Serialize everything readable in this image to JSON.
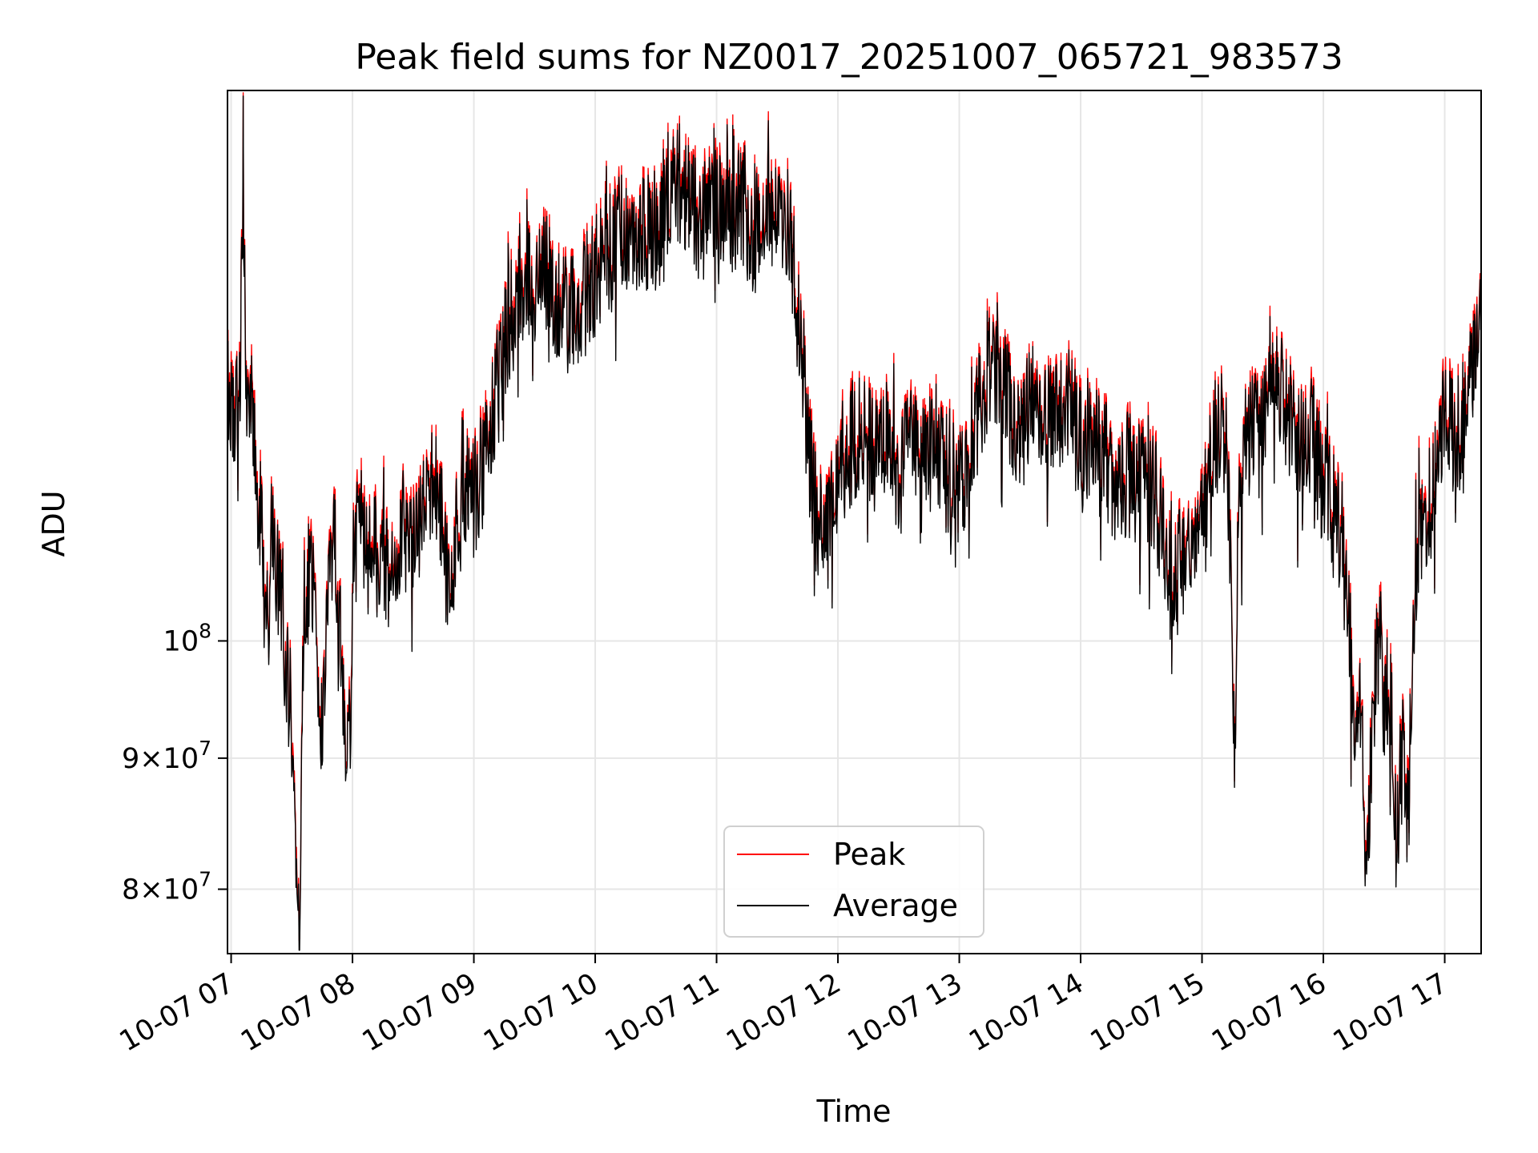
{
  "chart_data": {
    "type": "line",
    "title": "Peak field sums for NZ0017_20251007_065721_983573",
    "xlabel": "Time",
    "ylabel": "ADU",
    "yscale": "log",
    "xlim": [
      6.97,
      17.3
    ],
    "ylim": [
      75500000,
      164000000
    ],
    "grid": true,
    "legend_position": "bottom-center",
    "x_ticks": [
      {
        "value": 7,
        "label": "10-07 07"
      },
      {
        "value": 8,
        "label": "10-07 08"
      },
      {
        "value": 9,
        "label": "10-07 09"
      },
      {
        "value": 10,
        "label": "10-07 10"
      },
      {
        "value": 11,
        "label": "10-07 11"
      },
      {
        "value": 12,
        "label": "10-07 12"
      },
      {
        "value": 13,
        "label": "10-07 13"
      },
      {
        "value": 14,
        "label": "10-07 14"
      },
      {
        "value": 15,
        "label": "10-07 15"
      },
      {
        "value": 16,
        "label": "10-07 16"
      },
      {
        "value": 17,
        "label": "10-07 17"
      }
    ],
    "y_ticks": [
      {
        "value": 80000000,
        "base": "8",
        "mult": "×",
        "exp_base": "10",
        "exp": "7"
      },
      {
        "value": 90000000,
        "base": "9",
        "mult": "×",
        "exp_base": "10",
        "exp": "7"
      },
      {
        "value": 100000000,
        "base": "",
        "mult": "",
        "exp_base": "10",
        "exp": "8"
      }
    ],
    "series": [
      {
        "name": "Peak",
        "color": "#ff0000"
      },
      {
        "name": "Average",
        "color": "#000000"
      }
    ],
    "x": [
      6.97,
      7.06,
      7.1,
      7.12,
      7.14,
      7.16,
      7.2,
      7.25,
      7.3,
      7.31,
      7.33,
      7.36,
      7.4,
      7.45,
      7.5,
      7.55,
      7.57,
      7.58,
      7.59,
      7.6,
      7.62,
      7.65,
      7.7,
      7.75,
      7.8,
      7.85,
      7.9,
      7.95,
      7.96,
      7.98,
      8.0,
      8.05,
      8.1,
      8.2,
      8.3,
      8.4,
      8.5,
      8.6,
      8.7,
      8.8,
      8.9,
      9.0,
      9.1,
      9.2,
      9.3,
      9.4,
      9.5,
      9.6,
      9.7,
      9.8,
      9.9,
      10.0,
      10.1,
      10.2,
      10.3,
      10.4,
      10.5,
      10.6,
      10.7,
      10.8,
      10.9,
      11.0,
      11.1,
      11.2,
      11.3,
      11.4,
      11.5,
      11.6,
      11.65,
      11.7,
      11.75,
      11.8,
      11.85,
      11.9,
      11.95,
      12.0,
      12.1,
      12.2,
      12.3,
      12.4,
      12.5,
      12.6,
      12.7,
      12.8,
      12.9,
      13.0,
      13.1,
      13.2,
      13.3,
      13.4,
      13.5,
      13.6,
      13.7,
      13.8,
      13.9,
      14.0,
      14.1,
      14.2,
      14.3,
      14.4,
      14.5,
      14.6,
      14.7,
      14.8,
      14.9,
      15.0,
      15.1,
      15.2,
      15.25,
      15.27,
      15.3,
      15.4,
      15.5,
      15.6,
      15.7,
      15.8,
      15.9,
      16.0,
      16.1,
      16.15,
      16.2,
      16.25,
      16.3,
      16.35,
      16.4,
      16.45,
      16.5,
      16.55,
      16.6,
      16.65,
      16.7,
      16.75,
      16.8,
      16.9,
      17.0,
      17.1,
      17.2,
      17.3
    ],
    "average": [
      126000000,
      122000000,
      150500000,
      130000000,
      121000000,
      124000000,
      118000000,
      110000000,
      102000000,
      98500000,
      110000000,
      108000000,
      104000000,
      98000000,
      93000000,
      80000000,
      76000000,
      88000000,
      100000000,
      104000000,
      103000000,
      107000000,
      101000000,
      91000000,
      106000000,
      110000000,
      101000000,
      91000000,
      96000000,
      92000000,
      104000000,
      113000000,
      110000000,
      108000000,
      106000000,
      111000000,
      108000000,
      113000000,
      116000000,
      104000000,
      116000000,
      114000000,
      118000000,
      126000000,
      134000000,
      137000000,
      138000000,
      139000000,
      136000000,
      134000000,
      136000000,
      139000000,
      142000000,
      145000000,
      143000000,
      144000000,
      145000000,
      150000000,
      151000000,
      147000000,
      146000000,
      150000000,
      147000000,
      148000000,
      144000000,
      146000000,
      147000000,
      145000000,
      138000000,
      130000000,
      120000000,
      114000000,
      111000000,
      111000000,
      112000000,
      117000000,
      119000000,
      121000000,
      118000000,
      120000000,
      115000000,
      120000000,
      117000000,
      120000000,
      116000000,
      115000000,
      118000000,
      126000000,
      128000000,
      124000000,
      120000000,
      125000000,
      121000000,
      123000000,
      125000000,
      119000000,
      121000000,
      118000000,
      115000000,
      117000000,
      116000000,
      115000000,
      109000000,
      107000000,
      110000000,
      111000000,
      120000000,
      121000000,
      101000000,
      89000000,
      115000000,
      122000000,
      121000000,
      125000000,
      123000000,
      119000000,
      121000000,
      115000000,
      112000000,
      108000000,
      104000000,
      94000000,
      96000000,
      80000000,
      92000000,
      100000000,
      95000000,
      97000000,
      83000000,
      92000000,
      85000000,
      105000000,
      110000000,
      114000000,
      122000000,
      120000000,
      125000000,
      131000000
    ]
  },
  "legend": {
    "peak_label": "Peak",
    "average_label": "Average"
  }
}
